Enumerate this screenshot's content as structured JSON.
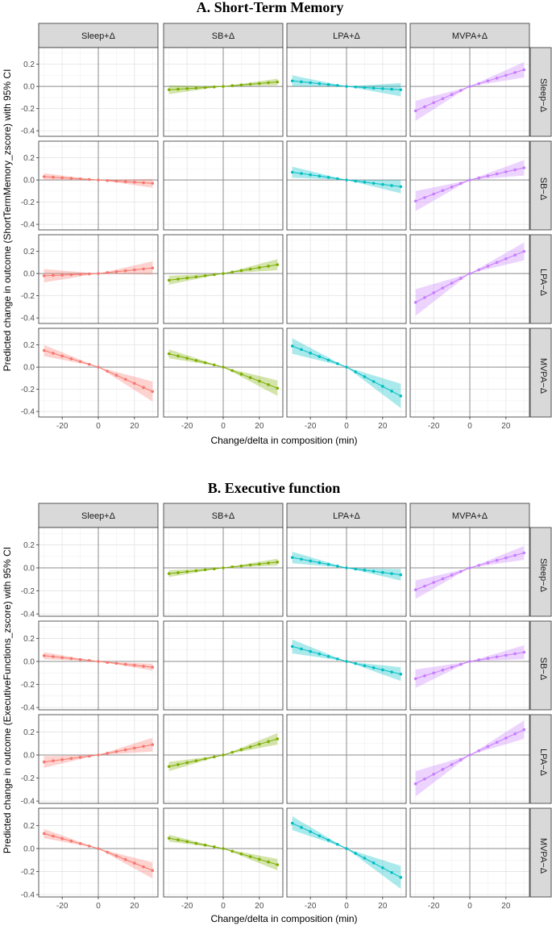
{
  "chart_data": [
    {
      "type": "line",
      "title": "A.   Short-Term Memory",
      "xlabel": "Change/delta in composition (min)",
      "ylabel": "Predicted change in outcome (ShortTermMemory_zscore) with 95% CI",
      "col_labels": [
        "Sleep+Δ",
        "SB+Δ",
        "LPA+Δ",
        "MVPA+Δ"
      ],
      "row_labels": [
        "Sleep−Δ",
        "SB−Δ",
        "LPA−Δ",
        "MVPA−Δ"
      ],
      "xlim": [
        -33,
        33
      ],
      "ylim": [
        -0.45,
        0.35
      ],
      "xticks": [
        -20,
        0,
        20
      ],
      "yticks": [
        -0.4,
        -0.2,
        0.0,
        0.2
      ],
      "x": [
        -30,
        -25,
        -20,
        -15,
        -10,
        -5,
        0,
        5,
        10,
        15,
        20,
        25,
        30
      ],
      "legend": "none",
      "grid": true,
      "panels": [
        {
          "row": 0,
          "col": 1,
          "color": "#7CAE00",
          "start": -0.03,
          "end": 0.04,
          "ci_start": 0.04,
          "ci_end": 0.03
        },
        {
          "row": 0,
          "col": 2,
          "color": "#00BFC4",
          "start": 0.05,
          "end": -0.03,
          "ci_start": 0.05,
          "ci_end": 0.06
        },
        {
          "row": 0,
          "col": 3,
          "color": "#C77CFF",
          "start": -0.22,
          "end": 0.15,
          "ci_start": 0.09,
          "ci_end": 0.07
        },
        {
          "row": 1,
          "col": 0,
          "color": "#F8766D",
          "start": 0.03,
          "end": -0.03,
          "ci_start": 0.03,
          "ci_end": 0.04
        },
        {
          "row": 1,
          "col": 2,
          "color": "#00BFC4",
          "start": 0.07,
          "end": -0.06,
          "ci_start": 0.05,
          "ci_end": 0.06
        },
        {
          "row": 1,
          "col": 3,
          "color": "#C77CFF",
          "start": -0.19,
          "end": 0.11,
          "ci_start": 0.09,
          "ci_end": 0.07
        },
        {
          "row": 2,
          "col": 0,
          "color": "#F8766D",
          "start": -0.02,
          "end": 0.05,
          "ci_start": 0.06,
          "ci_end": 0.06
        },
        {
          "row": 2,
          "col": 1,
          "color": "#7CAE00",
          "start": -0.06,
          "end": 0.08,
          "ci_start": 0.04,
          "ci_end": 0.05
        },
        {
          "row": 2,
          "col": 3,
          "color": "#C77CFF",
          "start": -0.26,
          "end": 0.2,
          "ci_start": 0.12,
          "ci_end": 0.08
        },
        {
          "row": 3,
          "col": 0,
          "color": "#F8766D",
          "start": 0.15,
          "end": -0.22,
          "ci_start": 0.05,
          "ci_end": 0.09
        },
        {
          "row": 3,
          "col": 1,
          "color": "#7CAE00",
          "start": 0.12,
          "end": -0.19,
          "ci_start": 0.04,
          "ci_end": 0.07
        },
        {
          "row": 3,
          "col": 2,
          "color": "#00BFC4",
          "start": 0.19,
          "end": -0.26,
          "ci_start": 0.07,
          "ci_end": 0.11
        }
      ]
    },
    {
      "type": "line",
      "title": "B.   Executive function",
      "xlabel": "Change/delta in composition (min)",
      "ylabel": "Predicted change in outcome (ExecutiveFunctions_zscore) with 95% CI",
      "col_labels": [
        "Sleep+Δ",
        "SB+Δ",
        "LPA+Δ",
        "MVPA+Δ"
      ],
      "row_labels": [
        "Sleep−Δ",
        "SB−Δ",
        "LPA−Δ",
        "MVPA−Δ"
      ],
      "xlim": [
        -33,
        33
      ],
      "ylim": [
        -0.42,
        0.35
      ],
      "xticks": [
        -20,
        0,
        20
      ],
      "yticks": [
        -0.4,
        -0.2,
        0.0,
        0.2
      ],
      "x": [
        -30,
        -25,
        -20,
        -15,
        -10,
        -5,
        0,
        5,
        10,
        15,
        20,
        25,
        30
      ],
      "legend": "none",
      "grid": true,
      "panels": [
        {
          "row": 0,
          "col": 1,
          "color": "#7CAE00",
          "start": -0.05,
          "end": 0.05,
          "ci_start": 0.03,
          "ci_end": 0.03
        },
        {
          "row": 0,
          "col": 2,
          "color": "#00BFC4",
          "start": 0.09,
          "end": -0.06,
          "ci_start": 0.05,
          "ci_end": 0.05
        },
        {
          "row": 0,
          "col": 3,
          "color": "#C77CFF",
          "start": -0.19,
          "end": 0.13,
          "ci_start": 0.08,
          "ci_end": 0.06
        },
        {
          "row": 1,
          "col": 0,
          "color": "#F8766D",
          "start": 0.05,
          "end": -0.05,
          "ci_start": 0.03,
          "ci_end": 0.03
        },
        {
          "row": 1,
          "col": 2,
          "color": "#00BFC4",
          "start": 0.13,
          "end": -0.11,
          "ci_start": 0.06,
          "ci_end": 0.06
        },
        {
          "row": 1,
          "col": 3,
          "color": "#C77CFF",
          "start": -0.15,
          "end": 0.08,
          "ci_start": 0.08,
          "ci_end": 0.06
        },
        {
          "row": 2,
          "col": 0,
          "color": "#F8766D",
          "start": -0.06,
          "end": 0.09,
          "ci_start": 0.05,
          "ci_end": 0.06
        },
        {
          "row": 2,
          "col": 1,
          "color": "#7CAE00",
          "start": -0.1,
          "end": 0.14,
          "ci_start": 0.04,
          "ci_end": 0.05
        },
        {
          "row": 2,
          "col": 3,
          "color": "#C77CFF",
          "start": -0.25,
          "end": 0.22,
          "ci_start": 0.11,
          "ci_end": 0.08
        },
        {
          "row": 3,
          "col": 0,
          "color": "#F8766D",
          "start": 0.13,
          "end": -0.19,
          "ci_start": 0.04,
          "ci_end": 0.07
        },
        {
          "row": 3,
          "col": 1,
          "color": "#7CAE00",
          "start": 0.09,
          "end": -0.14,
          "ci_start": 0.03,
          "ci_end": 0.05
        },
        {
          "row": 3,
          "col": 2,
          "color": "#00BFC4",
          "start": 0.22,
          "end": -0.25,
          "ci_start": 0.06,
          "ci_end": 0.1
        }
      ]
    }
  ]
}
